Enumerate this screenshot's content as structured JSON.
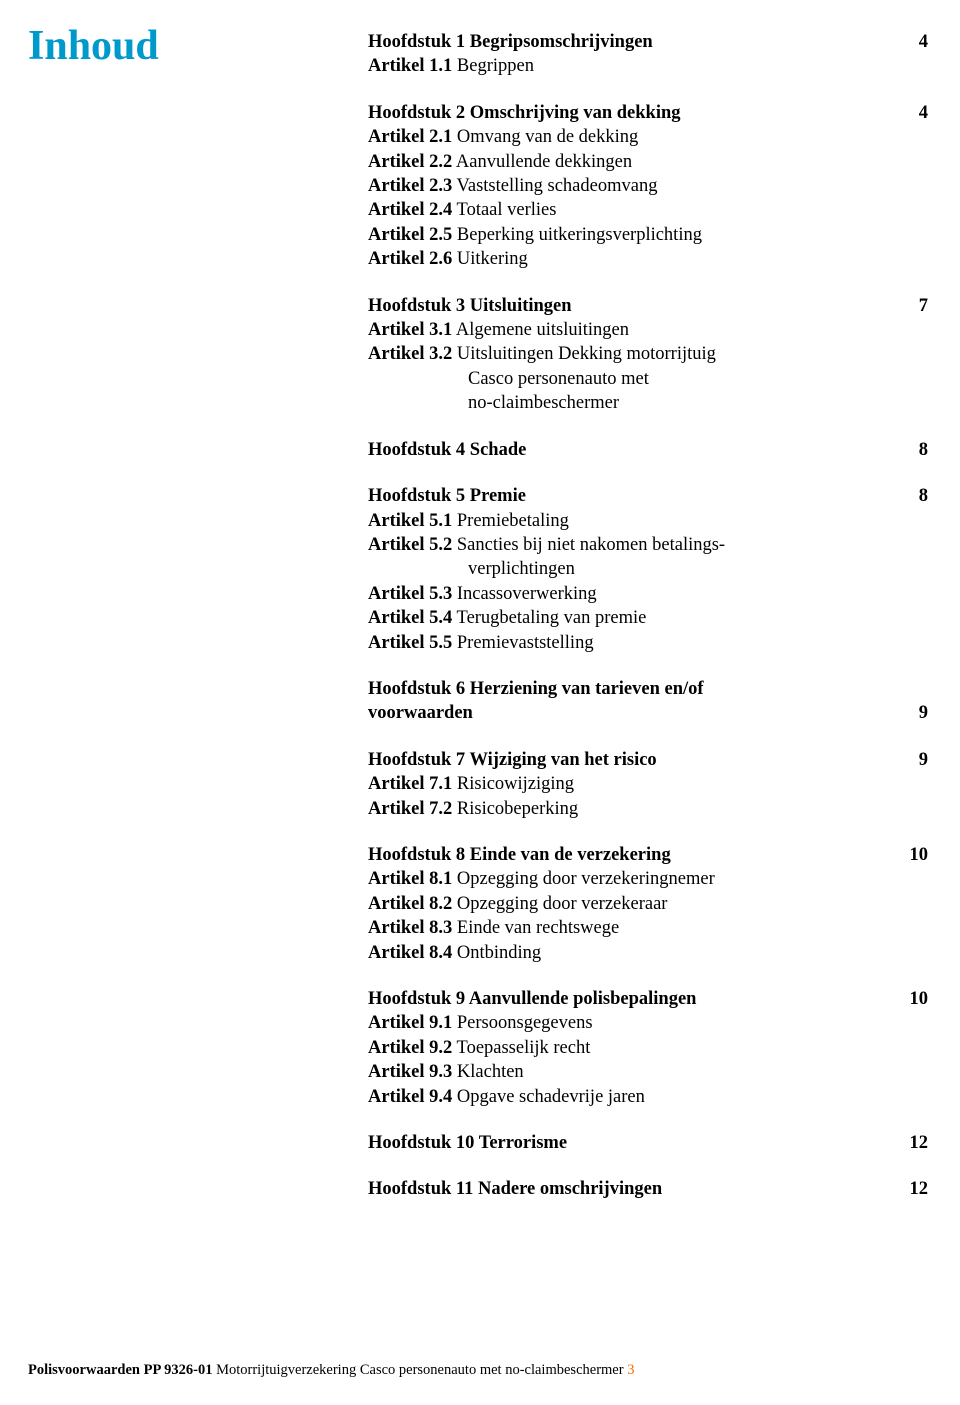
{
  "page_title": "Inhoud",
  "title_color": "#0099cc",
  "sections": [
    {
      "chapter_title": "Hoofdstuk 1 Begripsomschrijvingen",
      "page": "4",
      "articles": [
        {
          "label": "Artikel 1.1",
          "text": " Begrippen"
        }
      ]
    },
    {
      "chapter_title": "Hoofdstuk 2 Omschrijving van dekking",
      "page": "4",
      "articles": [
        {
          "label": "Artikel 2.1",
          "text": " Omvang van de dekking"
        },
        {
          "label": "Artikel 2.2",
          "text": " Aanvullende dekkingen"
        },
        {
          "label": "Artikel 2.3",
          "text": " Vaststelling schadeomvang"
        },
        {
          "label": "Artikel 2.4",
          "text": " Totaal verlies"
        },
        {
          "label": "Artikel 2.5",
          "text": " Beperking uitkeringsverplichting"
        },
        {
          "label": "Artikel 2.6",
          "text": " Uitkering"
        }
      ]
    },
    {
      "chapter_title": "Hoofdstuk 3 Uitsluitingen",
      "page": "7",
      "articles": [
        {
          "label": "Artikel 3.1",
          "text": " Algemene uitsluitingen"
        },
        {
          "label": "Artikel 3.2",
          "text": " Uitsluitingen Dekking motorrijtuig",
          "continuation": [
            "Casco personenauto met",
            "no-claimbeschermer"
          ]
        }
      ]
    },
    {
      "chapter_title": "Hoofdstuk 4 Schade",
      "page": "8",
      "articles": []
    },
    {
      "chapter_title": "Hoofdstuk 5 Premie",
      "page": "8",
      "articles": [
        {
          "label": "Artikel 5.1",
          "text": " Premiebetaling"
        },
        {
          "label": "Artikel 5.2",
          "text": " Sancties bij niet nakomen betalings-",
          "continuation": [
            "verplichtingen"
          ]
        },
        {
          "label": "Artikel 5.3",
          "text": " Incassoverwerking"
        },
        {
          "label": "Artikel 5.4",
          "text": " Terugbetaling van premie"
        },
        {
          "label": "Artikel 5.5",
          "text": " Premievaststelling"
        }
      ]
    },
    {
      "chapter_title_line1": "Hoofdstuk 6 Herziening van tarieven en/of",
      "chapter_title_line2": "voorwaarden",
      "page": "9",
      "articles": []
    },
    {
      "chapter_title": "Hoofdstuk 7 Wijziging van het risico",
      "page": "9",
      "articles": [
        {
          "label": "Artikel 7.1",
          "text": " Risicowijziging"
        },
        {
          "label": "Artikel 7.2",
          "text": " Risicobeperking"
        }
      ]
    },
    {
      "chapter_title": "Hoofdstuk 8 Einde van de verzekering",
      "page": "10",
      "articles": [
        {
          "label": "Artikel 8.1",
          "text": " Opzegging door verzekeringnemer"
        },
        {
          "label": "Artikel 8.2",
          "text": " Opzegging door verzekeraar"
        },
        {
          "label": "Artikel 8.3",
          "text": " Einde van rechtswege"
        },
        {
          "label": "Artikel 8.4",
          "text": " Ontbinding"
        }
      ]
    },
    {
      "chapter_title": "Hoofdstuk 9 Aanvullende polisbepalingen",
      "page": "10",
      "articles": [
        {
          "label": "Artikel 9.1",
          "text": " Persoonsgegevens"
        },
        {
          "label": "Artikel 9.2",
          "text": " Toepasselijk recht"
        },
        {
          "label": "Artikel 9.3",
          "text": " Klachten"
        },
        {
          "label": "Artikel 9.4",
          "text": " Opgave schadevrije jaren"
        }
      ]
    },
    {
      "chapter_title": "Hoofdstuk 10 Terrorisme",
      "page": "12",
      "articles": []
    },
    {
      "chapter_title": "Hoofdstuk 11 Nadere omschrijvingen",
      "page": "12",
      "articles": []
    }
  ],
  "footer": {
    "bold_part": "Polisvoorwaarden PP 9326-01 ",
    "regular_part": "Motorrijtuigverzekering Casco personenauto met no-claimbeschermer ",
    "page_number": "3",
    "page_number_color": "#ff6600"
  }
}
